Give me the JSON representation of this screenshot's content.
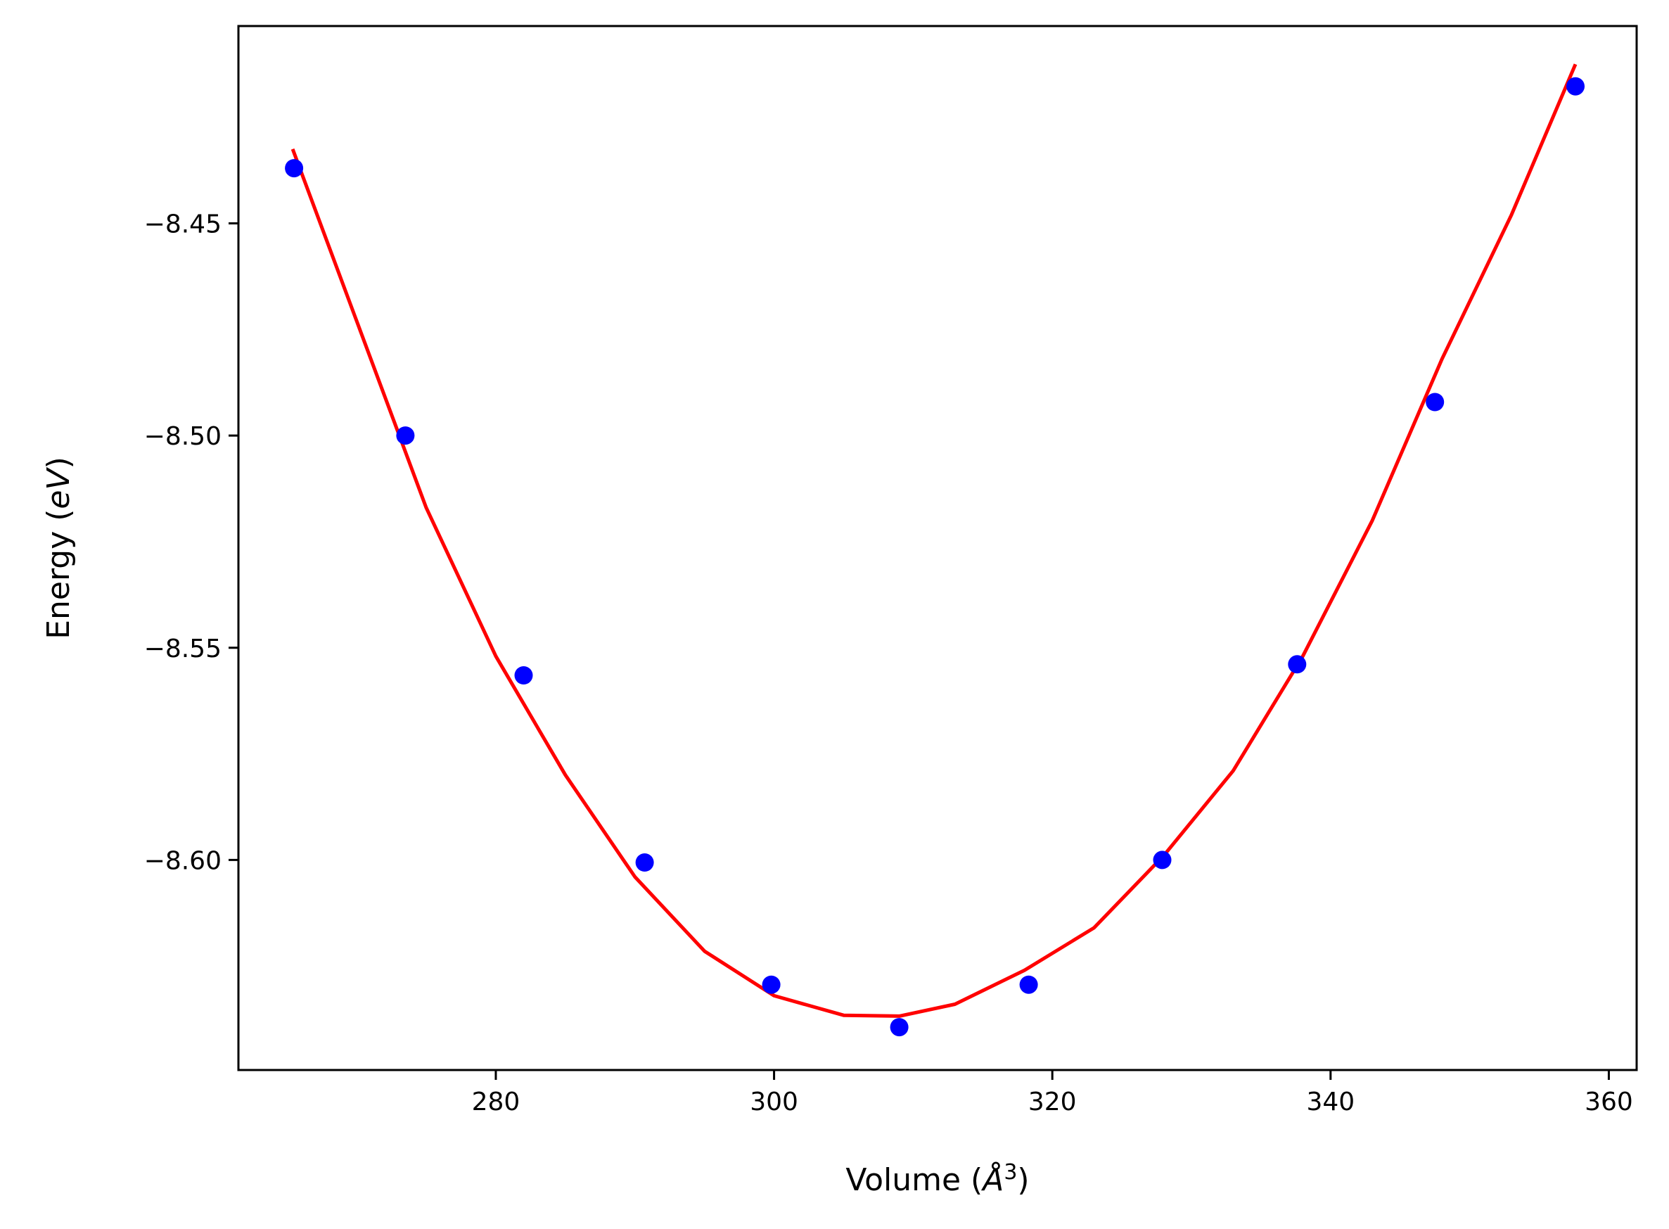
{
  "chart_data": {
    "type": "scatter",
    "title": "",
    "xlabel": {
      "prefix": "Volume (",
      "symbol": "Å",
      "superscript": "3",
      "suffix": ")"
    },
    "ylabel": {
      "prefix": "Energy (",
      "unit": "eV",
      "suffix": ")"
    },
    "xlim": [
      261.5,
      362.0
    ],
    "ylim": [
      -8.6495,
      -8.4035
    ],
    "xticks": [
      280,
      300,
      320,
      340,
      360
    ],
    "yticks": [
      -8.6,
      -8.55,
      -8.5,
      -8.45
    ],
    "xtick_labels": [
      "280",
      "300",
      "320",
      "340",
      "360"
    ],
    "ytick_labels": [
      "−8.60",
      "−8.55",
      "−8.50",
      "−8.45"
    ],
    "grid": false,
    "legend": "none",
    "series": [
      {
        "kind": "points",
        "color": "#0000ff",
        "x": [
          265.5,
          273.5,
          282.0,
          290.7,
          299.8,
          309.0,
          318.3,
          327.9,
          337.6,
          347.5,
          357.6
        ],
        "y": [
          -8.437,
          -8.5,
          -8.5565,
          -8.6006,
          -8.6294,
          -8.6394,
          -8.6294,
          -8.6,
          -8.5539,
          -8.4921,
          -8.4177
        ]
      },
      {
        "kind": "fit-curve",
        "color": "#ff0000",
        "x": [
          265.4,
          270.0,
          275.0,
          280.0,
          285.0,
          290.0,
          295.0,
          300.0,
          305.0,
          309.0,
          313.0,
          318.0,
          323.0,
          328.0,
          333.0,
          338.0,
          343.0,
          348.0,
          353.0,
          357.6
        ],
        "y": [
          -8.4325,
          -8.473,
          -8.517,
          -8.552,
          -8.58,
          -8.604,
          -8.6215,
          -8.632,
          -8.6366,
          -8.6368,
          -8.634,
          -8.626,
          -8.616,
          -8.599,
          -8.579,
          -8.552,
          -8.52,
          -8.482,
          -8.448,
          -8.4125
        ]
      }
    ]
  }
}
